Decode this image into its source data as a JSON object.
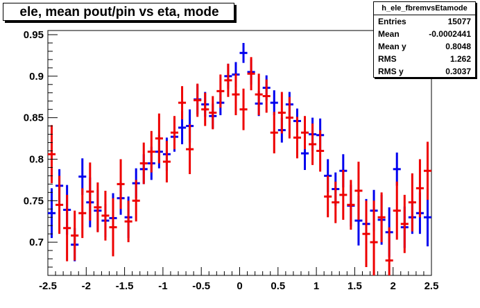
{
  "title": "ele, mean pout/pin vs eta, mode",
  "stats": {
    "name": "h_ele_fbremvsEtamode",
    "rows": [
      {
        "key": "Entries",
        "value": "15077"
      },
      {
        "key": "Mean",
        "value": "-0.0002441"
      },
      {
        "key": "Mean y",
        "value": "0.8048"
      },
      {
        "key": "RMS",
        "value": "1.262"
      },
      {
        "key": "RMS y",
        "value": "0.3037"
      }
    ]
  },
  "chart_data": {
    "type": "scatter",
    "title": "ele, mean pout/pin vs eta, mode",
    "xlabel": "",
    "ylabel": "",
    "xlim": [
      -2.5,
      2.5
    ],
    "ylim": [
      0.66,
      0.955
    ],
    "x_ticks": [
      -2.5,
      -2,
      -1.5,
      -1,
      -0.5,
      0,
      0.5,
      1,
      1.5,
      2,
      2.5
    ],
    "x_tick_labels": [
      "-2.5",
      "-2",
      "-1.5",
      "-1",
      "-0.5",
      "0",
      "0.5",
      "1",
      "1.5",
      "2",
      "2.5"
    ],
    "y_ticks": [
      0.7,
      0.75,
      0.8,
      0.85,
      0.9,
      0.95
    ],
    "y_tick_labels": [
      "0.7",
      "0.75",
      "0.8",
      "0.85",
      "0.9",
      "0.95"
    ],
    "grid": false,
    "series": [
      {
        "color": "#0000ee",
        "points": [
          [
            -2.45,
            0.735,
            0.03
          ],
          [
            -2.35,
            0.768,
            0.02
          ],
          [
            -2.25,
            0.739,
            0.03
          ],
          [
            -2.15,
            0.697,
            0.02
          ],
          [
            -2.05,
            0.779,
            0.022
          ],
          [
            -1.95,
            0.748,
            0.03
          ],
          [
            -1.85,
            0.738,
            0.025
          ],
          [
            -1.75,
            0.726,
            0.02
          ],
          [
            -1.65,
            0.729,
            0.03
          ],
          [
            -1.55,
            0.753,
            0.02
          ],
          [
            -1.45,
            0.73,
            0.025
          ],
          [
            -1.35,
            0.771,
            0.018
          ],
          [
            -1.25,
            0.788,
            0.018
          ],
          [
            -1.15,
            0.795,
            0.02
          ],
          [
            -1.05,
            0.809,
            0.02
          ],
          [
            -0.95,
            0.806,
            0.02
          ],
          [
            -0.85,
            0.827,
            0.018
          ],
          [
            -0.75,
            0.838,
            0.02
          ],
          [
            -0.65,
            0.84,
            0.02
          ],
          [
            -0.55,
            0.872,
            0.018
          ],
          [
            -0.45,
            0.866,
            0.015
          ],
          [
            -0.35,
            0.852,
            0.015
          ],
          [
            -0.25,
            0.868,
            0.015
          ],
          [
            -0.15,
            0.9,
            0.015
          ],
          [
            -0.05,
            0.902,
            0.015
          ],
          [
            0.05,
            0.928,
            0.012
          ],
          [
            0.15,
            0.905,
            0.015
          ],
          [
            0.25,
            0.867,
            0.015
          ],
          [
            0.35,
            0.886,
            0.015
          ],
          [
            0.45,
            0.868,
            0.015
          ],
          [
            0.55,
            0.835,
            0.015
          ],
          [
            0.65,
            0.866,
            0.015
          ],
          [
            0.75,
            0.846,
            0.015
          ],
          [
            0.85,
            0.807,
            0.02
          ],
          [
            0.95,
            0.83,
            0.02
          ],
          [
            1.05,
            0.829,
            0.02
          ],
          [
            1.15,
            0.78,
            0.02
          ],
          [
            1.25,
            0.764,
            0.02
          ],
          [
            1.35,
            0.786,
            0.02
          ],
          [
            1.45,
            0.744,
            0.025
          ],
          [
            1.55,
            0.726,
            0.03
          ],
          [
            1.65,
            0.722,
            0.03
          ],
          [
            1.75,
            0.738,
            0.025
          ],
          [
            1.85,
            0.727,
            0.03
          ],
          [
            1.95,
            0.712,
            0.03
          ],
          [
            2.05,
            0.788,
            0.02
          ],
          [
            2.15,
            0.718,
            0.025
          ],
          [
            2.25,
            0.73,
            0.02
          ],
          [
            2.35,
            0.735,
            0.025
          ],
          [
            2.45,
            0.73,
            0.035
          ]
        ]
      },
      {
        "color": "#ee0000",
        "points": [
          [
            -2.45,
            0.806,
            0.035
          ],
          [
            -2.35,
            0.745,
            0.035
          ],
          [
            -2.25,
            0.717,
            0.04
          ],
          [
            -2.15,
            0.708,
            0.03
          ],
          [
            -2.05,
            0.735,
            0.03
          ],
          [
            -1.95,
            0.761,
            0.035
          ],
          [
            -1.85,
            0.742,
            0.03
          ],
          [
            -1.75,
            0.732,
            0.03
          ],
          [
            -1.65,
            0.718,
            0.035
          ],
          [
            -1.55,
            0.77,
            0.03
          ],
          [
            -1.45,
            0.725,
            0.025
          ],
          [
            -1.35,
            0.75,
            0.025
          ],
          [
            -1.25,
            0.795,
            0.025
          ],
          [
            -1.15,
            0.809,
            0.025
          ],
          [
            -1.05,
            0.825,
            0.03
          ],
          [
            -0.95,
            0.797,
            0.025
          ],
          [
            -0.85,
            0.832,
            0.02
          ],
          [
            -0.75,
            0.868,
            0.02
          ],
          [
            -0.65,
            0.812,
            0.03
          ],
          [
            -0.55,
            0.871,
            0.02
          ],
          [
            -0.45,
            0.86,
            0.02
          ],
          [
            -0.35,
            0.856,
            0.02
          ],
          [
            -0.25,
            0.882,
            0.02
          ],
          [
            -0.15,
            0.895,
            0.02
          ],
          [
            -0.05,
            0.878,
            0.025
          ],
          [
            0.05,
            0.86,
            0.025
          ],
          [
            0.15,
            0.903,
            0.02
          ],
          [
            0.25,
            0.878,
            0.025
          ],
          [
            0.35,
            0.876,
            0.02
          ],
          [
            0.45,
            0.832,
            0.025
          ],
          [
            0.55,
            0.856,
            0.025
          ],
          [
            0.65,
            0.85,
            0.025
          ],
          [
            0.75,
            0.826,
            0.025
          ],
          [
            0.85,
            0.832,
            0.02
          ],
          [
            0.95,
            0.818,
            0.025
          ],
          [
            1.05,
            0.81,
            0.025
          ],
          [
            1.15,
            0.755,
            0.025
          ],
          [
            1.25,
            0.748,
            0.025
          ],
          [
            1.35,
            0.757,
            0.03
          ],
          [
            1.45,
            0.745,
            0.03
          ],
          [
            1.55,
            0.762,
            0.035
          ],
          [
            1.65,
            0.71,
            0.04
          ],
          [
            1.75,
            0.7,
            0.05
          ],
          [
            1.85,
            0.73,
            0.03
          ],
          [
            1.95,
            0.678,
            0.04
          ],
          [
            2.05,
            0.738,
            0.035
          ],
          [
            2.15,
            0.722,
            0.035
          ],
          [
            2.25,
            0.748,
            0.035
          ],
          [
            2.35,
            0.765,
            0.035
          ],
          [
            2.45,
            0.786,
            0.035
          ]
        ]
      }
    ]
  }
}
